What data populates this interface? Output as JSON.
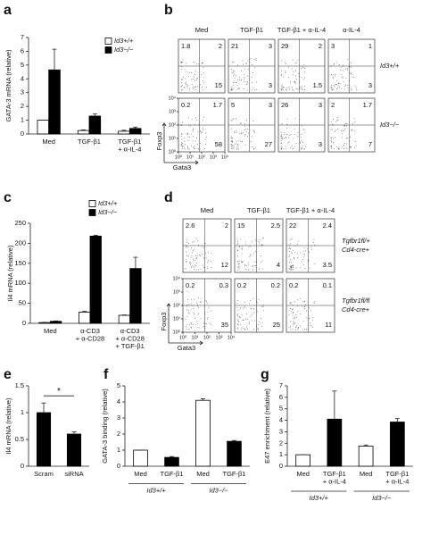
{
  "chart_data": [
    {
      "type": "bar",
      "panel": "a",
      "ylabel": "GATA-3 mRNA (relative)",
      "categories": [
        "Med",
        "TGF-β1",
        "TGF-β1 + α-IL-4"
      ],
      "series": [
        {
          "name": "Id3+/+",
          "color": "#ffffff",
          "values": [
            1,
            0.25,
            0.2
          ],
          "errors": [
            0,
            0.05,
            0.07
          ]
        },
        {
          "name": "Id3−/−",
          "color": "#000000",
          "values": [
            4.65,
            1.3,
            0.4
          ],
          "errors": [
            1.5,
            0.15,
            0.1
          ]
        }
      ],
      "ylim": [
        0,
        7
      ],
      "yticks": [
        0,
        1,
        2,
        3,
        4,
        5,
        6,
        7
      ]
    },
    {
      "type": "flow",
      "panel": "b",
      "xlabel": "Gata3",
      "ylabel": "Foxp3",
      "columns": [
        "Med",
        "TGF-β1",
        "TGF-β1 + α-IL-4",
        "α-IL-4"
      ],
      "rows": [
        {
          "label": [
            "Id3+/+"
          ],
          "plots": [
            [
              1.8,
              2,
              15
            ],
            [
              21,
              3,
              3
            ],
            [
              29,
              2,
              1.5
            ],
            [
              3,
              1,
              3
            ]
          ]
        },
        {
          "label": [
            "Id3−/−"
          ],
          "plots": [
            [
              0.2,
              1.7,
              58
            ],
            [
              5,
              3,
              27
            ],
            [
              26,
              3,
              3
            ],
            [
              2,
              1.7,
              7
            ]
          ]
        }
      ],
      "log": true,
      "xlim": [
        1,
        10000
      ],
      "ylim": [
        1,
        10000
      ],
      "ticks": [
        {
          "value": 1,
          "label": "10⁰"
        },
        {
          "value": 10,
          "label": "10¹"
        },
        {
          "value": 100,
          "label": "10²"
        },
        {
          "value": 1000,
          "label": "10³"
        },
        {
          "value": 10000,
          "label": "10⁴"
        }
      ]
    },
    {
      "type": "bar",
      "panel": "c",
      "ylabel": "Il4 mRNA (relative)",
      "categories": [
        "Med",
        "α-CD3 + α-CD28",
        "α-CD3 + α-CD28 + TGF-β1"
      ],
      "series": [
        {
          "name": "Id3+/+",
          "color": "#ffffff",
          "values": [
            2,
            28,
            20
          ],
          "errors": [
            0.5,
            2,
            1
          ]
        },
        {
          "name": "Id3−/−",
          "color": "#000000",
          "values": [
            5,
            218,
            137
          ],
          "errors": [
            1,
            2,
            28
          ]
        }
      ],
      "ylim": [
        0,
        250
      ],
      "yticks": [
        0,
        50,
        100,
        150,
        200,
        250
      ]
    },
    {
      "type": "flow",
      "panel": "d",
      "xlabel": "Gata3",
      "ylabel": "Foxp3",
      "columns": [
        "Med",
        "TGF-β1",
        "TGF-β1 + α-IL-4"
      ],
      "rows": [
        {
          "label": [
            "Tgfbr1fl/+",
            "Cd4-cre+"
          ],
          "plots": [
            [
              2.6,
              2,
              12
            ],
            [
              15,
              2.5,
              4
            ],
            [
              22,
              2.4,
              3.5
            ]
          ]
        },
        {
          "label": [
            "Tgfbr1fl/fl",
            "Cd4-cre+"
          ],
          "plots": [
            [
              0.2,
              0.3,
              35
            ],
            [
              0.2,
              0.2,
              25
            ],
            [
              0.2,
              0.1,
              11
            ]
          ]
        }
      ],
      "log": true,
      "xlim": [
        1,
        10000
      ],
      "ylim": [
        1,
        10000
      ],
      "ticks": [
        {
          "value": 1,
          "label": "10⁰"
        },
        {
          "value": 10,
          "label": "10¹"
        },
        {
          "value": 100,
          "label": "10²"
        },
        {
          "value": 1000,
          "label": "10³"
        },
        {
          "value": 10000,
          "label": "10⁴"
        }
      ]
    },
    {
      "type": "bar",
      "panel": "e",
      "ylabel": "Il4 mRNA (relative)",
      "categories": [
        "Scram",
        "siRNA"
      ],
      "values": [
        1,
        0.6
      ],
      "errors": [
        0.18,
        0.04
      ],
      "colors": [
        "#000000",
        "#000000"
      ],
      "annotation": "*",
      "ylim": [
        0,
        1.5
      ],
      "yticks": [
        0,
        0.5,
        1,
        1.5
      ]
    },
    {
      "type": "bar",
      "panel": "f",
      "ylabel": "GATA-3 binding (relative)",
      "categories": [
        "Med",
        "TGF-β1",
        "Med",
        "TGF-β1"
      ],
      "values": [
        1,
        0.55,
        4.1,
        1.55
      ],
      "errors": [
        0,
        0.05,
        0.1,
        0.05
      ],
      "colors": [
        "#ffffff",
        "#000000",
        "#ffffff",
        "#000000"
      ],
      "groups": [
        "Id3+/+",
        "Id3−/−"
      ],
      "ylim": [
        0,
        5
      ],
      "yticks": [
        0,
        1,
        2,
        3,
        4,
        5
      ]
    },
    {
      "type": "bar",
      "panel": "g",
      "ylabel": "E47 enrichment (relative)",
      "categories": [
        "Med",
        "TGF-β1 + α-IL-4",
        "Med",
        "TGF-β1 + α-IL-4"
      ],
      "values": [
        1,
        4.1,
        1.75,
        3.85
      ],
      "errors": [
        0,
        2.45,
        0.1,
        0.3
      ],
      "colors": [
        "#ffffff",
        "#000000",
        "#ffffff",
        "#000000"
      ],
      "groups": [
        "Id3+/+",
        "Id3−/−"
      ],
      "ylim": [
        0,
        7
      ],
      "yticks": [
        0,
        1,
        2,
        3,
        4,
        5,
        6,
        7
      ]
    }
  ]
}
